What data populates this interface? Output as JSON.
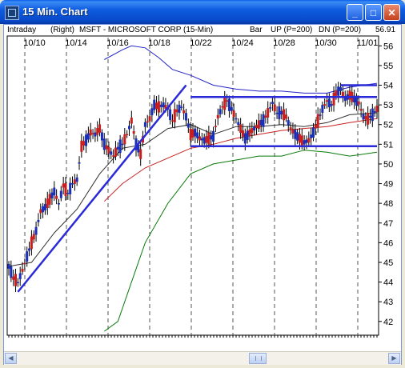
{
  "window": {
    "title": "15 Min. Chart",
    "icon": "chart-app-icon",
    "controls": {
      "minimize": "_",
      "maximize": "□",
      "close": "✕"
    }
  },
  "infobar": {
    "mode": "Intraday",
    "axis_side": "(Right)",
    "symbol": "MSFT - MICROSOFT CORP (15-Min)",
    "bar_type": "Bar",
    "up_label": "UP (P=200)",
    "dn_label": "DN (P=200)",
    "last_price": "56.91"
  },
  "colors": {
    "bar_up": "#1a2fb8",
    "bar_down": "#c81e1e",
    "upper_band": "#2424c8",
    "lower_band": "#0a7a0a",
    "mid_average": "#c82020",
    "short_average": "#303030",
    "trendlines": "#2a2ad8"
  },
  "chart_data": {
    "type": "bar",
    "x_tick_labels": [
      "10/10",
      "10/14",
      "10/16",
      "10/18",
      "10/22",
      "10/24",
      "10/28",
      "10/30",
      "11/01"
    ],
    "y_ticks": [
      42,
      43,
      44,
      45,
      46,
      47,
      48,
      49,
      50,
      51,
      52,
      53,
      54,
      55,
      56
    ],
    "ylim": [
      41.3,
      56.5
    ],
    "grid": "vertical dashed at dates",
    "price_path": [
      [
        0,
        44.8
      ],
      [
        2,
        44.2
      ],
      [
        4,
        44.0
      ],
      [
        6,
        44.6
      ],
      [
        8,
        45.3
      ],
      [
        10,
        46.0
      ],
      [
        12,
        46.6
      ],
      [
        14,
        47.6
      ],
      [
        16,
        47.8
      ],
      [
        18,
        48.2
      ],
      [
        20,
        48.6
      ],
      [
        22,
        48.0
      ],
      [
        24,
        48.9
      ],
      [
        26,
        48.5
      ],
      [
        28,
        49.0
      ],
      [
        30,
        49.2
      ],
      [
        32,
        50.9
      ],
      [
        34,
        51.2
      ],
      [
        36,
        51.6
      ],
      [
        38,
        51.5
      ],
      [
        40,
        51.8
      ],
      [
        42,
        51.0
      ],
      [
        44,
        50.7
      ],
      [
        46,
        50.4
      ],
      [
        48,
        50.8
      ],
      [
        50,
        51.0
      ],
      [
        52,
        51.5
      ],
      [
        54,
        52.2
      ],
      [
        56,
        51.0
      ],
      [
        58,
        50.5
      ],
      [
        60,
        52.0
      ],
      [
        62,
        52.3
      ],
      [
        64,
        53.0
      ],
      [
        66,
        52.9
      ],
      [
        68,
        53.0
      ],
      [
        70,
        52.8
      ],
      [
        72,
        52.2
      ],
      [
        74,
        52.7
      ],
      [
        76,
        52.9
      ],
      [
        78,
        52.4
      ],
      [
        80,
        51.5
      ],
      [
        82,
        51.6
      ],
      [
        84,
        51.3
      ],
      [
        86,
        51.2
      ],
      [
        88,
        51.3
      ],
      [
        90,
        51.4
      ],
      [
        92,
        52.4
      ],
      [
        94,
        52.9
      ],
      [
        96,
        53.2
      ],
      [
        98,
        52.8
      ],
      [
        100,
        52.3
      ],
      [
        102,
        51.8
      ],
      [
        104,
        51.3
      ],
      [
        106,
        51.6
      ],
      [
        108,
        51.8
      ],
      [
        110,
        52.0
      ],
      [
        112,
        52.2
      ],
      [
        114,
        52.6
      ],
      [
        116,
        53.1
      ],
      [
        118,
        52.6
      ],
      [
        120,
        52.6
      ],
      [
        122,
        52.4
      ],
      [
        124,
        51.8
      ],
      [
        126,
        51.5
      ],
      [
        128,
        51.3
      ],
      [
        130,
        51.1
      ],
      [
        132,
        51.2
      ],
      [
        134,
        51.6
      ],
      [
        136,
        52.2
      ],
      [
        138,
        52.8
      ],
      [
        140,
        53.2
      ],
      [
        142,
        53.0
      ],
      [
        144,
        53.6
      ],
      [
        146,
        53.8
      ],
      [
        148,
        53.3
      ],
      [
        150,
        53.5
      ],
      [
        152,
        53.3
      ],
      [
        154,
        53.1
      ],
      [
        156,
        52.4
      ],
      [
        158,
        52.3
      ],
      [
        160,
        52.5
      ],
      [
        162,
        52.8
      ]
    ],
    "short_average": [
      [
        0,
        44.8
      ],
      [
        10,
        45.0
      ],
      [
        20,
        46.5
      ],
      [
        30,
        47.7
      ],
      [
        40,
        49.5
      ],
      [
        50,
        50.8
      ],
      [
        60,
        51.0
      ],
      [
        70,
        51.8
      ],
      [
        80,
        52.0
      ],
      [
        90,
        51.5
      ],
      [
        100,
        51.9
      ],
      [
        110,
        51.9
      ],
      [
        120,
        52.0
      ],
      [
        130,
        51.9
      ],
      [
        140,
        52.1
      ],
      [
        150,
        52.5
      ],
      [
        162,
        52.6
      ]
    ],
    "mid_average": [
      [
        42,
        48.1
      ],
      [
        50,
        49.0
      ],
      [
        60,
        49.8
      ],
      [
        70,
        50.3
      ],
      [
        80,
        50.8
      ],
      [
        90,
        51.0
      ],
      [
        100,
        51.3
      ],
      [
        110,
        51.5
      ],
      [
        120,
        51.7
      ],
      [
        130,
        51.8
      ],
      [
        140,
        51.9
      ],
      [
        150,
        52.1
      ],
      [
        162,
        52.3
      ]
    ],
    "upper_band": [
      [
        42,
        55.3
      ],
      [
        50,
        55.8
      ],
      [
        54,
        56.0
      ],
      [
        60,
        55.9
      ],
      [
        66,
        55.4
      ],
      [
        72,
        54.8
      ],
      [
        80,
        54.5
      ],
      [
        90,
        54.0
      ],
      [
        100,
        53.8
      ],
      [
        110,
        53.7
      ],
      [
        120,
        53.7
      ],
      [
        130,
        53.6
      ],
      [
        140,
        53.6
      ],
      [
        150,
        53.9
      ],
      [
        162,
        54.1
      ]
    ],
    "lower_band": [
      [
        42,
        41.5
      ],
      [
        48,
        42.0
      ],
      [
        54,
        44.0
      ],
      [
        60,
        46.0
      ],
      [
        70,
        48.0
      ],
      [
        80,
        49.5
      ],
      [
        90,
        50.0
      ],
      [
        100,
        50.2
      ],
      [
        110,
        50.4
      ],
      [
        120,
        50.4
      ],
      [
        130,
        50.7
      ],
      [
        140,
        50.6
      ],
      [
        150,
        50.4
      ],
      [
        162,
        50.6
      ]
    ],
    "trendlines": [
      {
        "from": [
          4,
          43.5
        ],
        "to": [
          78,
          54.0
        ]
      },
      {
        "from": [
          80,
          53.4
        ],
        "to": [
          162,
          53.4
        ]
      },
      {
        "from": [
          80,
          50.9
        ],
        "to": [
          162,
          50.9
        ]
      },
      {
        "from": [
          146,
          54.0
        ],
        "to": [
          162,
          54.0
        ]
      }
    ]
  }
}
